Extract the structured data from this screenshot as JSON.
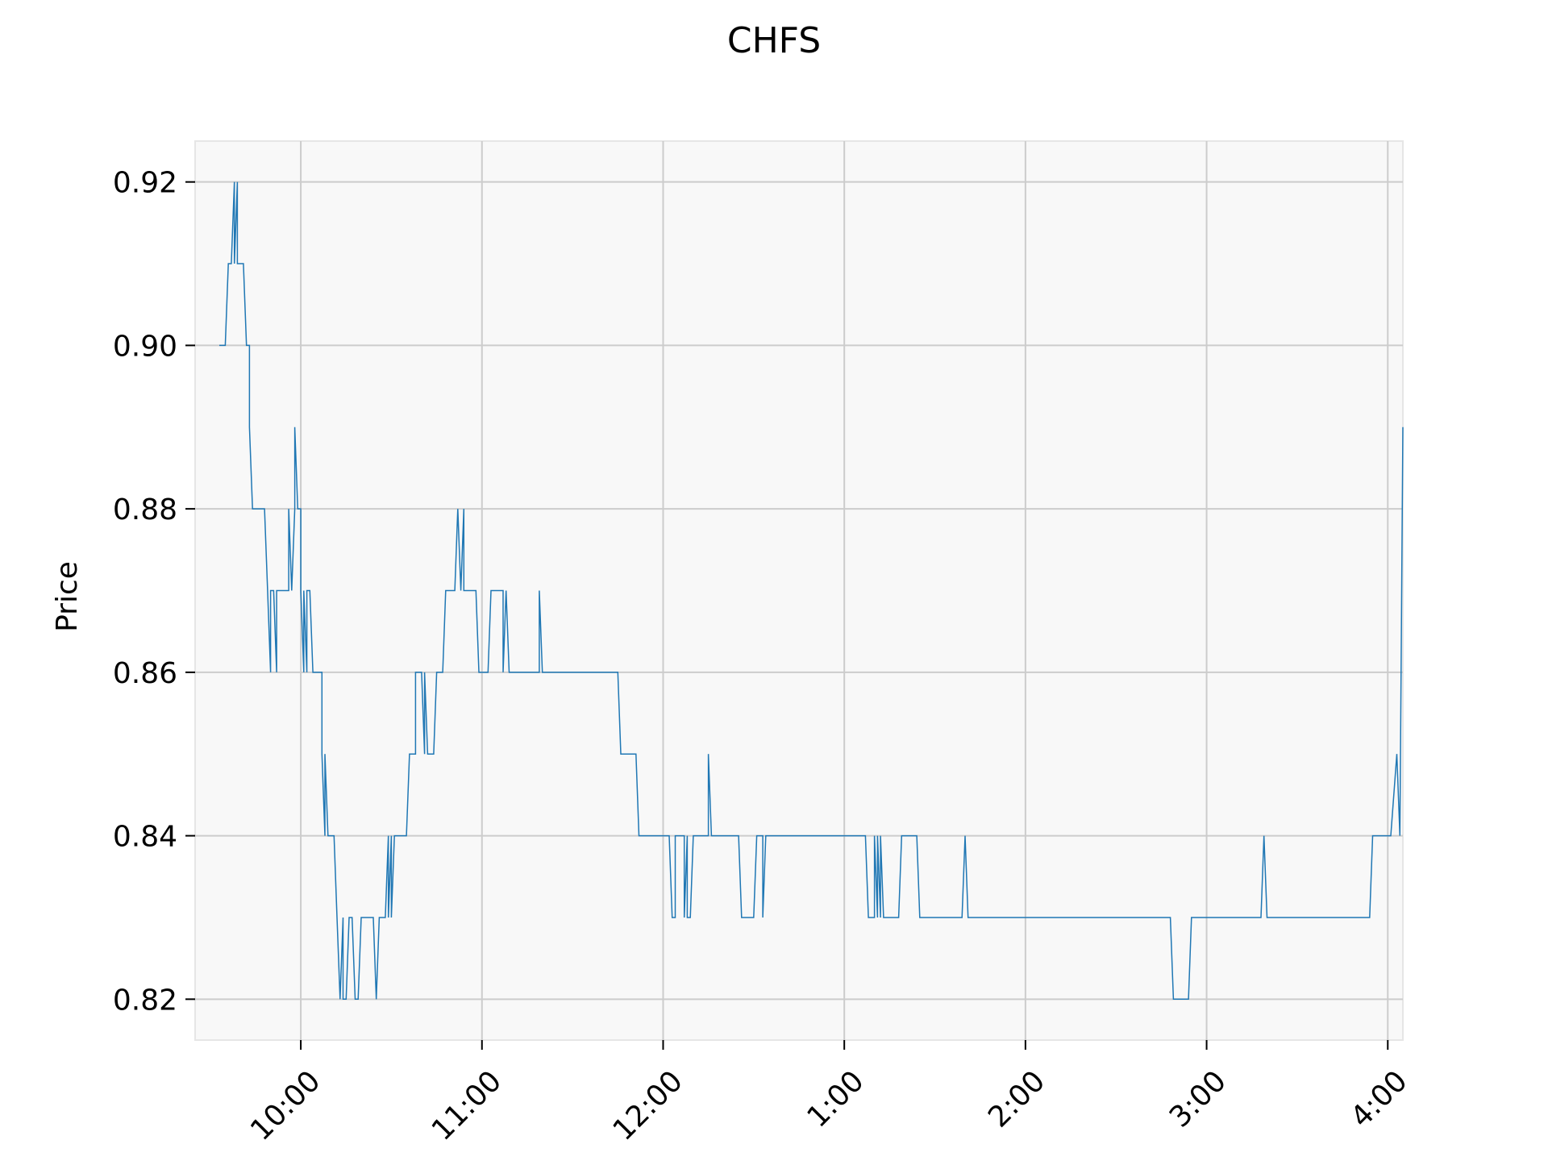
{
  "chart_data": {
    "type": "line",
    "title": "CHFS",
    "xlabel": "",
    "ylabel": "Price",
    "grid": true,
    "colors": {
      "line": "#1f77b4",
      "plot_background": "#f8f8f8",
      "grid": "#cccccc",
      "frame": "#e6e6e6"
    },
    "xlim": [
      "9:25",
      "4:05"
    ],
    "ylim": [
      0.815,
      0.925
    ],
    "x_ticks": [
      {
        "time": "10:00",
        "label": "10:00"
      },
      {
        "time": "11:00",
        "label": "11:00"
      },
      {
        "time": "12:00",
        "label": "12:00"
      },
      {
        "time": "1:00",
        "label": "1:00"
      },
      {
        "time": "2:00",
        "label": "2:00"
      },
      {
        "time": "3:00",
        "label": "3:00"
      },
      {
        "time": "4:00",
        "label": "4:00"
      }
    ],
    "y_ticks": [
      {
        "value": 0.82,
        "label": "0.82"
      },
      {
        "value": 0.84,
        "label": "0.84"
      },
      {
        "value": 0.86,
        "label": "0.86"
      },
      {
        "value": 0.88,
        "label": "0.88"
      },
      {
        "value": 0.9,
        "label": "0.90"
      },
      {
        "value": 0.92,
        "label": "0.92"
      }
    ],
    "series": [
      {
        "points": [
          [
            "9:33",
            0.9
          ],
          [
            "9:35",
            0.9
          ],
          [
            "9:36",
            0.91
          ],
          [
            "9:37",
            0.91
          ],
          [
            "9:38",
            0.92
          ],
          [
            "9:38",
            0.91
          ],
          [
            "9:39",
            0.92
          ],
          [
            "9:39",
            0.91
          ],
          [
            "9:40",
            0.91
          ],
          [
            "9:41",
            0.91
          ],
          [
            "9:42",
            0.9
          ],
          [
            "9:43",
            0.9
          ],
          [
            "9:43",
            0.89
          ],
          [
            "9:44",
            0.88
          ],
          [
            "9:48",
            0.88
          ],
          [
            "9:49",
            0.87
          ],
          [
            "9:50",
            0.86
          ],
          [
            "9:50",
            0.87
          ],
          [
            "9:51",
            0.87
          ],
          [
            "9:52",
            0.86
          ],
          [
            "9:52",
            0.87
          ],
          [
            "9:55",
            0.87
          ],
          [
            "9:56",
            0.87
          ],
          [
            "9:56",
            0.88
          ],
          [
            "9:57",
            0.87
          ],
          [
            "9:58",
            0.88
          ],
          [
            "9:58",
            0.89
          ],
          [
            "9:59",
            0.88
          ],
          [
            "10:00",
            0.88
          ],
          [
            "10:00",
            0.87
          ],
          [
            "10:01",
            0.86
          ],
          [
            "10:01",
            0.87
          ],
          [
            "10:02",
            0.86
          ],
          [
            "10:02",
            0.87
          ],
          [
            "10:03",
            0.87
          ],
          [
            "10:04",
            0.86
          ],
          [
            "10:07",
            0.86
          ],
          [
            "10:07",
            0.85
          ],
          [
            "10:08",
            0.84
          ],
          [
            "10:08",
            0.85
          ],
          [
            "10:09",
            0.84
          ],
          [
            "10:11",
            0.84
          ],
          [
            "10:12",
            0.83
          ],
          [
            "10:13",
            0.82
          ],
          [
            "10:14",
            0.83
          ],
          [
            "10:14",
            0.82
          ],
          [
            "10:15",
            0.82
          ],
          [
            "10:16",
            0.83
          ],
          [
            "10:17",
            0.83
          ],
          [
            "10:18",
            0.82
          ],
          [
            "10:19",
            0.82
          ],
          [
            "10:20",
            0.83
          ],
          [
            "10:24",
            0.83
          ],
          [
            "10:25",
            0.82
          ],
          [
            "10:26",
            0.83
          ],
          [
            "10:28",
            0.83
          ],
          [
            "10:29",
            0.84
          ],
          [
            "10:29",
            0.83
          ],
          [
            "10:30",
            0.84
          ],
          [
            "10:30",
            0.83
          ],
          [
            "10:31",
            0.84
          ],
          [
            "10:35",
            0.84
          ],
          [
            "10:36",
            0.85
          ],
          [
            "10:38",
            0.85
          ],
          [
            "10:38",
            0.86
          ],
          [
            "10:40",
            0.86
          ],
          [
            "10:41",
            0.85
          ],
          [
            "10:41",
            0.86
          ],
          [
            "10:42",
            0.85
          ],
          [
            "10:44",
            0.85
          ],
          [
            "10:45",
            0.86
          ],
          [
            "10:47",
            0.86
          ],
          [
            "10:48",
            0.87
          ],
          [
            "10:51",
            0.87
          ],
          [
            "10:52",
            0.88
          ],
          [
            "10:53",
            0.87
          ],
          [
            "10:54",
            0.88
          ],
          [
            "10:54",
            0.87
          ],
          [
            "10:58",
            0.87
          ],
          [
            "10:59",
            0.86
          ],
          [
            "11:02",
            0.86
          ],
          [
            "11:03",
            0.87
          ],
          [
            "11:07",
            0.87
          ],
          [
            "11:07",
            0.86
          ],
          [
            "11:08",
            0.87
          ],
          [
            "11:09",
            0.86
          ],
          [
            "11:19",
            0.86
          ],
          [
            "11:19",
            0.87
          ],
          [
            "11:20",
            0.86
          ],
          [
            "11:45",
            0.86
          ],
          [
            "11:46",
            0.85
          ],
          [
            "11:51",
            0.85
          ],
          [
            "11:52",
            0.84
          ],
          [
            "12:02",
            0.84
          ],
          [
            "12:03",
            0.83
          ],
          [
            "12:04",
            0.83
          ],
          [
            "12:04",
            0.84
          ],
          [
            "12:07",
            0.84
          ],
          [
            "12:07",
            0.83
          ],
          [
            "12:08",
            0.84
          ],
          [
            "12:08",
            0.83
          ],
          [
            "12:09",
            0.83
          ],
          [
            "12:10",
            0.84
          ],
          [
            "12:15",
            0.84
          ],
          [
            "12:15",
            0.85
          ],
          [
            "12:16",
            0.84
          ],
          [
            "12:25",
            0.84
          ],
          [
            "12:26",
            0.83
          ],
          [
            "12:30",
            0.83
          ],
          [
            "12:31",
            0.84
          ],
          [
            "12:33",
            0.84
          ],
          [
            "12:33",
            0.83
          ],
          [
            "12:34",
            0.84
          ],
          [
            "1:07",
            0.84
          ],
          [
            "1:08",
            0.83
          ],
          [
            "1:10",
            0.83
          ],
          [
            "1:10",
            0.84
          ],
          [
            "1:11",
            0.83
          ],
          [
            "1:11",
            0.84
          ],
          [
            "1:12",
            0.83
          ],
          [
            "1:12",
            0.84
          ],
          [
            "1:13",
            0.83
          ],
          [
            "1:18",
            0.83
          ],
          [
            "1:19",
            0.84
          ],
          [
            "1:24",
            0.84
          ],
          [
            "1:25",
            0.83
          ],
          [
            "1:39",
            0.83
          ],
          [
            "1:40",
            0.84
          ],
          [
            "1:41",
            0.83
          ],
          [
            "2:48",
            0.83
          ],
          [
            "2:49",
            0.82
          ],
          [
            "2:54",
            0.82
          ],
          [
            "2:55",
            0.83
          ],
          [
            "3:18",
            0.83
          ],
          [
            "3:19",
            0.84
          ],
          [
            "3:20",
            0.83
          ],
          [
            "3:54",
            0.83
          ],
          [
            "3:55",
            0.84
          ],
          [
            "4:01",
            0.84
          ],
          [
            "4:03",
            0.85
          ],
          [
            "4:04",
            0.84
          ],
          [
            "4:05",
            0.89
          ]
        ]
      }
    ]
  }
}
